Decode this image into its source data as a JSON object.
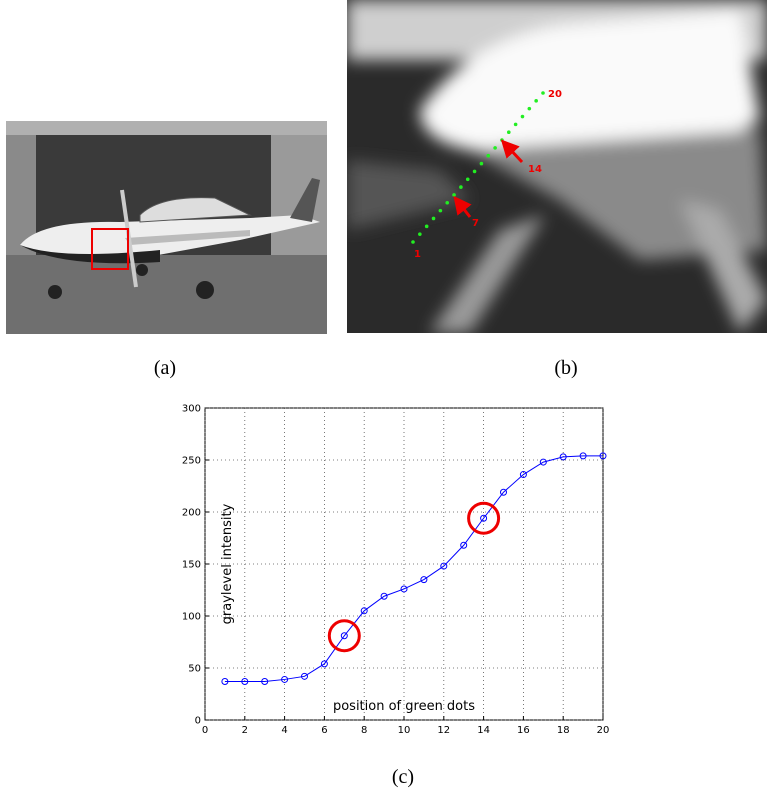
{
  "chart_data": {
    "type": "line",
    "x": [
      1,
      2,
      3,
      4,
      5,
      6,
      7,
      8,
      9,
      10,
      11,
      12,
      13,
      14,
      15,
      16,
      17,
      18,
      19,
      20
    ],
    "series": [
      {
        "name": "graylevel intensity",
        "color": "#0000ff",
        "values": [
          37,
          37,
          37,
          39,
          42,
          54,
          81,
          105,
          119,
          126,
          135,
          148,
          168,
          194,
          219,
          236,
          248,
          253,
          254,
          254
        ]
      }
    ],
    "xlabel": "position of green dots",
    "ylabel": "graylevel intensity",
    "xlim": [
      0,
      20
    ],
    "xticks": [
      0,
      2,
      4,
      6,
      8,
      10,
      12,
      14,
      16,
      18,
      20
    ],
    "ylim": [
      0,
      300
    ],
    "yticks": [
      0,
      50,
      100,
      150,
      200,
      250,
      300
    ],
    "grid": true,
    "highlighted_x": [
      7,
      14
    ]
  },
  "figure": {
    "labels": [
      "(a)",
      "(b)",
      "(c)"
    ],
    "dot_labels": [
      "1",
      "7",
      "14",
      "20"
    ]
  }
}
